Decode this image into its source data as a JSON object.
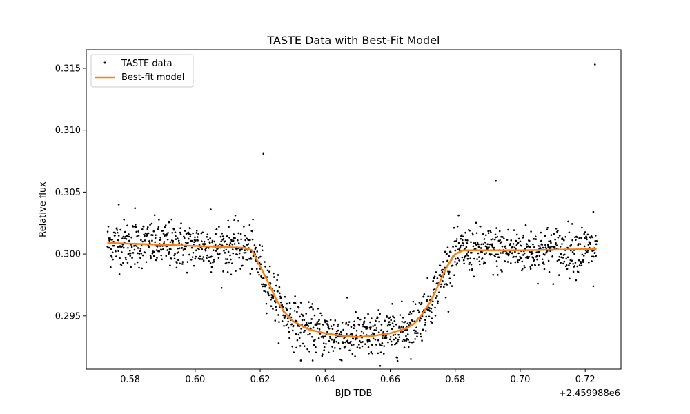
{
  "chart_data": {
    "type": "scatter",
    "title": "TASTE Data with Best-Fit Model",
    "xlabel": "BJD TDB",
    "ylabel": "Relative flux",
    "x_offset_label": "+2.459988e6",
    "xlim": [
      0.5665,
      0.731
    ],
    "ylim": [
      0.2907,
      0.3165
    ],
    "xticks": [
      0.58,
      0.6,
      0.62,
      0.64,
      0.66,
      0.68,
      0.7,
      0.72
    ],
    "xtick_labels": [
      "0.58",
      "0.60",
      "0.62",
      "0.64",
      "0.66",
      "0.68",
      "0.70",
      "0.72"
    ],
    "yticks": [
      0.295,
      0.3,
      0.305,
      0.31,
      0.315
    ],
    "ytick_labels": [
      "0.295",
      "0.300",
      "0.305",
      "0.310",
      "0.315"
    ],
    "legend_position": "top-left",
    "grid": false,
    "series": [
      {
        "name": "TASTE data",
        "kind": "scatter",
        "color": "#000000",
        "x_range": [
          0.573,
          0.7235
        ],
        "n_points": 1500,
        "noise_sigma": 0.00095,
        "outliers": [
          {
            "x": 0.621,
            "y": 0.3081
          },
          {
            "x": 0.6925,
            "y": 0.3059
          },
          {
            "x": 0.723,
            "y": 0.3153
          },
          {
            "x": 0.5765,
            "y": 0.304
          },
          {
            "x": 0.5815,
            "y": 0.3037
          },
          {
            "x": 0.6048,
            "y": 0.3036
          },
          {
            "x": 0.7225,
            "y": 0.3034
          },
          {
            "x": 0.7225,
            "y": 0.2974
          },
          {
            "x": 0.6325,
            "y": 0.2914
          }
        ]
      },
      {
        "name": "Best-fit model",
        "kind": "line",
        "color": "#ff7f0e",
        "x": [
          0.573,
          0.595,
          0.615,
          0.6175,
          0.62,
          0.6225,
          0.625,
          0.6275,
          0.63,
          0.635,
          0.64,
          0.645,
          0.65,
          0.655,
          0.66,
          0.665,
          0.6675,
          0.67,
          0.6725,
          0.675,
          0.6775,
          0.68,
          0.6825,
          0.7,
          0.7235
        ],
        "y": [
          0.3009,
          0.3007,
          0.3005,
          0.3003,
          0.299,
          0.2977,
          0.2963,
          0.2953,
          0.2946,
          0.2939,
          0.2936,
          0.2934,
          0.2933,
          0.2934,
          0.2936,
          0.294,
          0.2944,
          0.2952,
          0.2962,
          0.2976,
          0.299,
          0.3,
          0.3003,
          0.3003,
          0.3004
        ]
      }
    ]
  }
}
